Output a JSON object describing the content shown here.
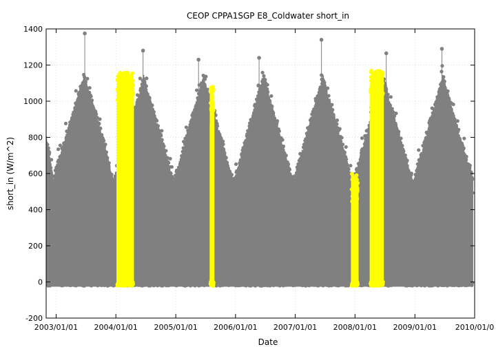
{
  "chart_data": {
    "type": "scatter",
    "title": "CEOP CPPA1SGP E8_Coldwater short_in",
    "xlabel": "Date",
    "ylabel": "short_in (W/m^2)",
    "xlim": [
      "2002-11-01",
      "2010-01-01"
    ],
    "ylim": [
      -200,
      1400
    ],
    "y_ticks": [
      -200,
      0,
      200,
      400,
      600,
      800,
      1000,
      1200,
      1400
    ],
    "x_ticks": [
      "2003/01/01",
      "2004/01/01",
      "2005/01/01",
      "2006/01/01",
      "2007/01/01",
      "2008/01/01",
      "2009/01/01",
      "2010/01/0"
    ],
    "x_tick_dates": [
      "2003-01-01",
      "2004-01-01",
      "2005-01-01",
      "2006-01-01",
      "2007-01-01",
      "2008-01-01",
      "2009-01-01",
      "2010-01-01"
    ],
    "grid": true,
    "series": [
      {
        "color": "#808080",
        "description": "diurnal shortwave irradiance, full record",
        "x_range": [
          "2002-11-01",
          "2009-12-20"
        ],
        "daily_envelope": [
          {
            "x": "2002-11-01",
            "y": 820
          },
          {
            "x": "2002-12-15",
            "y": 580
          },
          {
            "x": "2003-03-01",
            "y": 820
          },
          {
            "x": "2003-06-20",
            "y": 1150
          },
          {
            "x": "2003-09-15",
            "y": 900
          },
          {
            "x": "2003-12-20",
            "y": 560
          },
          {
            "x": "2004-06-20",
            "y": 1150
          },
          {
            "x": "2004-12-20",
            "y": 560
          },
          {
            "x": "2005-06-20",
            "y": 1150
          },
          {
            "x": "2005-12-20",
            "y": 560
          },
          {
            "x": "2006-06-20",
            "y": 1150
          },
          {
            "x": "2006-12-20",
            "y": 560
          },
          {
            "x": "2007-06-20",
            "y": 1150
          },
          {
            "x": "2007-12-20",
            "y": 560
          },
          {
            "x": "2008-06-20",
            "y": 1150
          },
          {
            "x": "2008-12-20",
            "y": 560
          },
          {
            "x": "2009-06-20",
            "y": 1150
          },
          {
            "x": "2009-12-20",
            "y": 580
          }
        ],
        "outliers": [
          {
            "x": "2003-06-25",
            "y": 1375
          },
          {
            "x": "2004-06-15",
            "y": 1280
          },
          {
            "x": "2005-05-20",
            "y": 1230
          },
          {
            "x": "2006-05-25",
            "y": 1240
          },
          {
            "x": "2007-06-10",
            "y": 1340
          },
          {
            "x": "2008-07-10",
            "y": 1265
          },
          {
            "x": "2009-06-15",
            "y": 1290
          }
        ],
        "baseline": -10
      },
      {
        "color": "#ffff00",
        "description": "flagged periods",
        "blocks": [
          {
            "start": "2004-01-10",
            "end": "2004-04-15",
            "max": 1160
          },
          {
            "start": "2005-08-01",
            "end": "2005-08-20",
            "max": 1080
          },
          {
            "start": "2007-12-12",
            "end": "2008-01-18",
            "max": 600
          },
          {
            "start": "2008-04-05",
            "end": "2008-06-20",
            "max": 1170
          }
        ]
      }
    ]
  }
}
